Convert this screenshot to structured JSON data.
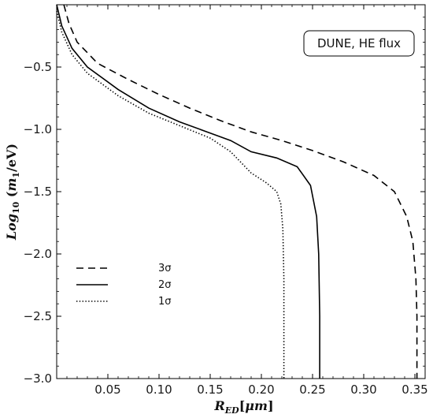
{
  "chart_data": {
    "type": "line",
    "xlabel": "R_ED[μm]",
    "ylabel": "Log10(m1/eV)",
    "xlim": [
      0.0,
      0.36
    ],
    "ylim": [
      -3.0,
      0.0
    ],
    "x_ticks": [
      0.05,
      0.1,
      0.15,
      0.2,
      0.25,
      0.3,
      0.35
    ],
    "x_tick_labels": [
      "0.05",
      "0.10",
      "0.15",
      "0.20",
      "0.25",
      "0.30",
      "0.35"
    ],
    "y_ticks": [
      -0.5,
      -1.0,
      -1.5,
      -2.0,
      -2.5,
      -3.0
    ],
    "y_tick_labels": [
      "−0.5",
      "−1.0",
      "−1.5",
      "−2.0",
      "−2.5",
      "−3.0"
    ],
    "annotation": "DUNE, HE flux",
    "legend_position": "lower-left",
    "grid": false,
    "series": [
      {
        "name": "3σ",
        "dash": "dashed",
        "points": [
          [
            0.007,
            0.0
          ],
          [
            0.012,
            -0.15
          ],
          [
            0.02,
            -0.3
          ],
          [
            0.04,
            -0.47
          ],
          [
            0.07,
            -0.6
          ],
          [
            0.1,
            -0.72
          ],
          [
            0.13,
            -0.83
          ],
          [
            0.16,
            -0.93
          ],
          [
            0.19,
            -1.02
          ],
          [
            0.22,
            -1.09
          ],
          [
            0.25,
            -1.17
          ],
          [
            0.28,
            -1.26
          ],
          [
            0.31,
            -1.37
          ],
          [
            0.33,
            -1.5
          ],
          [
            0.342,
            -1.7
          ],
          [
            0.348,
            -1.9
          ],
          [
            0.351,
            -2.2
          ],
          [
            0.352,
            -2.5
          ],
          [
            0.352,
            -3.0
          ]
        ]
      },
      {
        "name": "2σ",
        "dash": "solid",
        "points": [
          [
            0.0,
            0.0
          ],
          [
            0.005,
            -0.17
          ],
          [
            0.015,
            -0.35
          ],
          [
            0.03,
            -0.5
          ],
          [
            0.06,
            -0.68
          ],
          [
            0.09,
            -0.83
          ],
          [
            0.12,
            -0.94
          ],
          [
            0.15,
            -1.03
          ],
          [
            0.17,
            -1.09
          ],
          [
            0.19,
            -1.18
          ],
          [
            0.215,
            -1.23
          ],
          [
            0.235,
            -1.3
          ],
          [
            0.248,
            -1.45
          ],
          [
            0.254,
            -1.7
          ],
          [
            0.256,
            -2.0
          ],
          [
            0.257,
            -2.5
          ],
          [
            0.257,
            -3.0
          ]
        ]
      },
      {
        "name": "1σ",
        "dash": "dotted",
        "points": [
          [
            0.0,
            -0.05
          ],
          [
            0.005,
            -0.22
          ],
          [
            0.015,
            -0.4
          ],
          [
            0.03,
            -0.55
          ],
          [
            0.06,
            -0.73
          ],
          [
            0.09,
            -0.87
          ],
          [
            0.12,
            -0.97
          ],
          [
            0.15,
            -1.07
          ],
          [
            0.17,
            -1.18
          ],
          [
            0.19,
            -1.35
          ],
          [
            0.205,
            -1.43
          ],
          [
            0.215,
            -1.5
          ],
          [
            0.219,
            -1.6
          ],
          [
            0.221,
            -1.8
          ],
          [
            0.222,
            -2.2
          ],
          [
            0.222,
            -2.6
          ],
          [
            0.222,
            -3.0
          ]
        ]
      }
    ]
  }
}
